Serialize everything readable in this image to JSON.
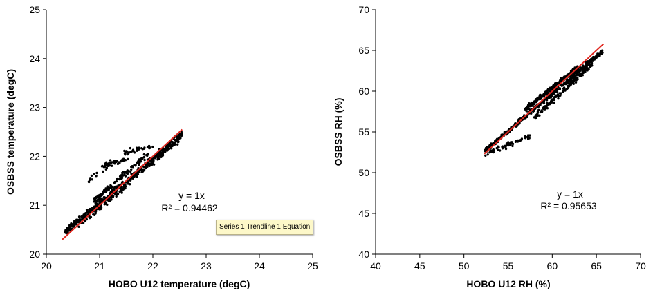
{
  "chart_data": [
    {
      "type": "scatter",
      "xlabel": "HOBO U12 temperature (degC)",
      "ylabel": "OSBSS temperature (degC)",
      "xlim": [
        20,
        25
      ],
      "ylim": [
        20,
        25
      ],
      "xticks": [
        "20",
        "21",
        "22",
        "23",
        "24",
        "25"
      ],
      "yticks": [
        "20",
        "21",
        "22",
        "23",
        "24",
        "25"
      ],
      "grid": false,
      "trendline": {
        "slope": 1,
        "x": [
          20.3,
          22.55
        ],
        "y": [
          20.3,
          22.55
        ],
        "color": "#e0261e"
      },
      "equation": "y = 1x",
      "r_squared": "R² = 0.94462",
      "tooltip": "Series 1 Trendline 1 Equation",
      "segments": [
        {
          "x0": 20.35,
          "x1": 22.55,
          "y0": 20.45,
          "y1": 22.45,
          "n": 400,
          "jitter": 0.06
        },
        {
          "x0": 20.6,
          "x1": 22.5,
          "y0": 20.55,
          "y1": 22.35,
          "n": 150,
          "jitter": 0.05
        },
        {
          "x0": 20.9,
          "x1": 21.9,
          "y0": 21.1,
          "y1": 22.05,
          "n": 120,
          "jitter": 0.06
        },
        {
          "x0": 21.05,
          "x1": 21.55,
          "y0": 21.8,
          "y1": 21.95,
          "n": 40,
          "jitter": 0.05
        },
        {
          "x0": 21.4,
          "x1": 22.0,
          "y0": 22.05,
          "y1": 22.2,
          "n": 35,
          "jitter": 0.05
        },
        {
          "x0": 20.8,
          "x1": 21.2,
          "y0": 21.5,
          "y1": 21.9,
          "n": 18,
          "jitter": 0.08
        }
      ]
    },
    {
      "type": "scatter",
      "xlabel": "HOBO U12 RH (%)",
      "ylabel": "OSBSS RH (%)",
      "xlim": [
        40,
        70
      ],
      "ylim": [
        40,
        70
      ],
      "xticks": [
        "40",
        "45",
        "50",
        "55",
        "60",
        "65",
        "70"
      ],
      "yticks": [
        "40",
        "45",
        "50",
        "55",
        "60",
        "65",
        "70"
      ],
      "grid": false,
      "trendline": {
        "slope": 1,
        "x": [
          52.3,
          65.8
        ],
        "y": [
          52.3,
          65.8
        ],
        "color": "#e0261e"
      },
      "equation": "y = 1x",
      "r_squared": "R² = 0.95653",
      "segments": [
        {
          "x0": 52.4,
          "x1": 65.7,
          "y0": 52.7,
          "y1": 64.9,
          "n": 400,
          "jitter": 0.25
        },
        {
          "x0": 57.0,
          "x1": 63.0,
          "y0": 57.8,
          "y1": 63.0,
          "n": 250,
          "jitter": 0.25
        },
        {
          "x0": 58.0,
          "x1": 64.5,
          "y0": 56.8,
          "y1": 63.3,
          "n": 150,
          "jitter": 0.3
        },
        {
          "x0": 52.4,
          "x1": 57.5,
          "y0": 52.3,
          "y1": 54.5,
          "n": 60,
          "jitter": 0.3
        }
      ]
    }
  ]
}
